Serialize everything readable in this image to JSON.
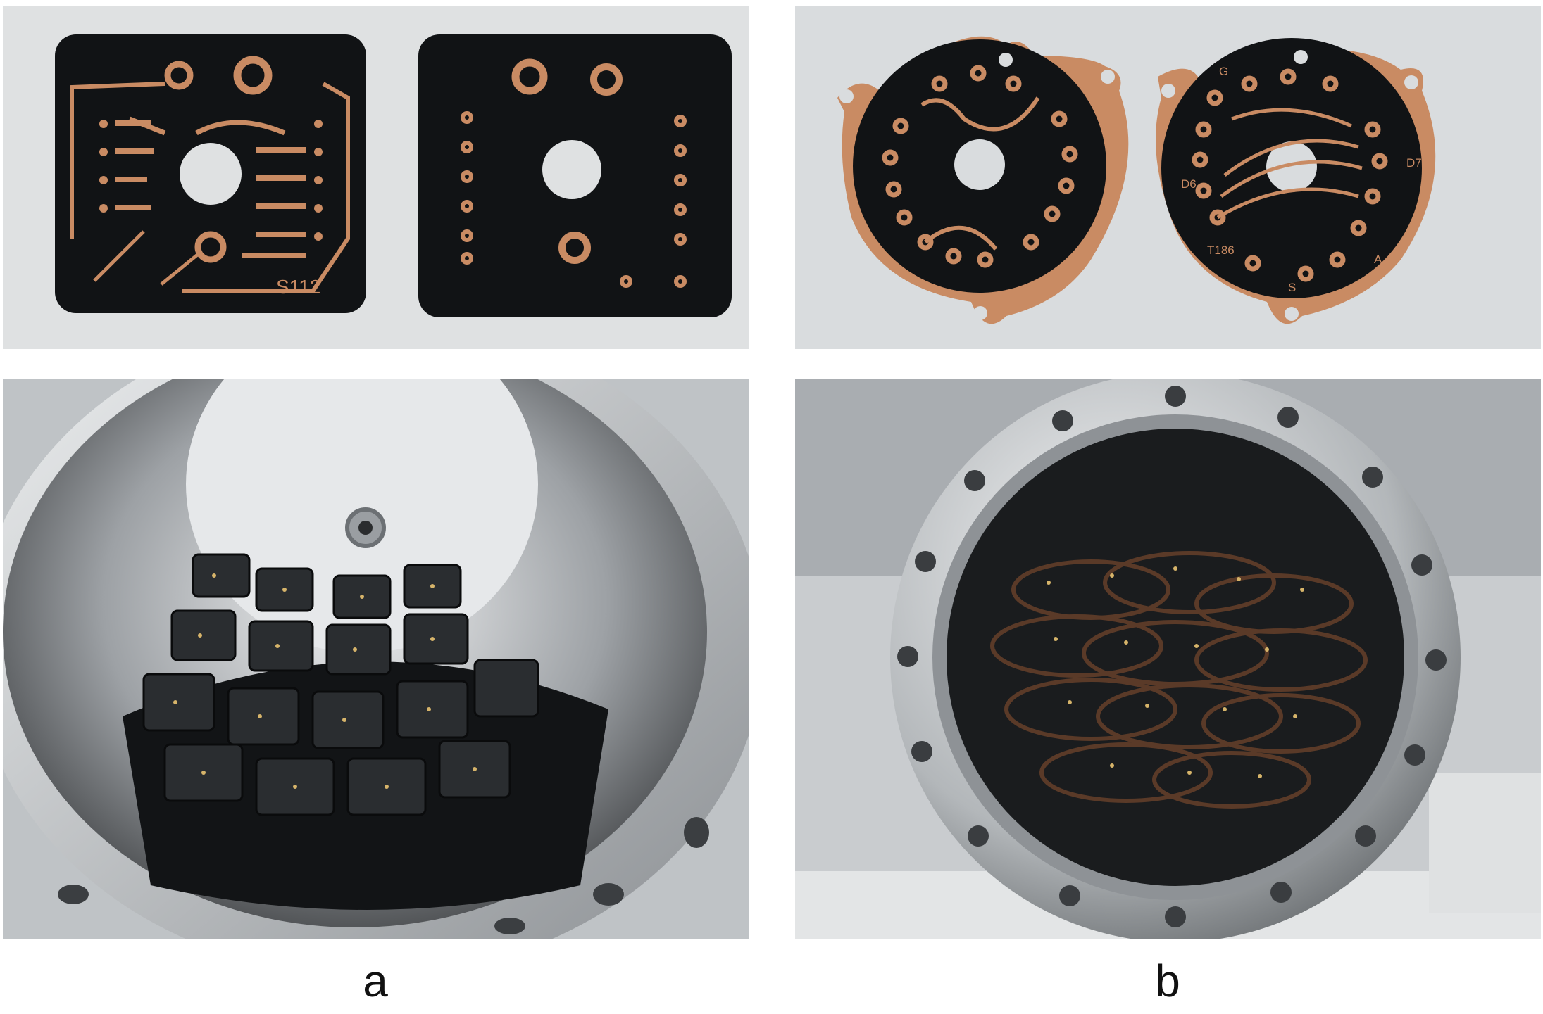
{
  "figure": {
    "panels": [
      {
        "label": "a",
        "top_photo_text": "S112"
      },
      {
        "label": "b",
        "top_photo_texts": [
          "D6",
          "D7",
          "T186",
          "S",
          "A",
          "G"
        ]
      }
    ]
  },
  "colors": {
    "background_top": "#dcdedf",
    "pcb_black": "#101214",
    "copper": "#c98b63",
    "steel_light": "#d9dde0",
    "steel_dark": "#3a3d40"
  }
}
